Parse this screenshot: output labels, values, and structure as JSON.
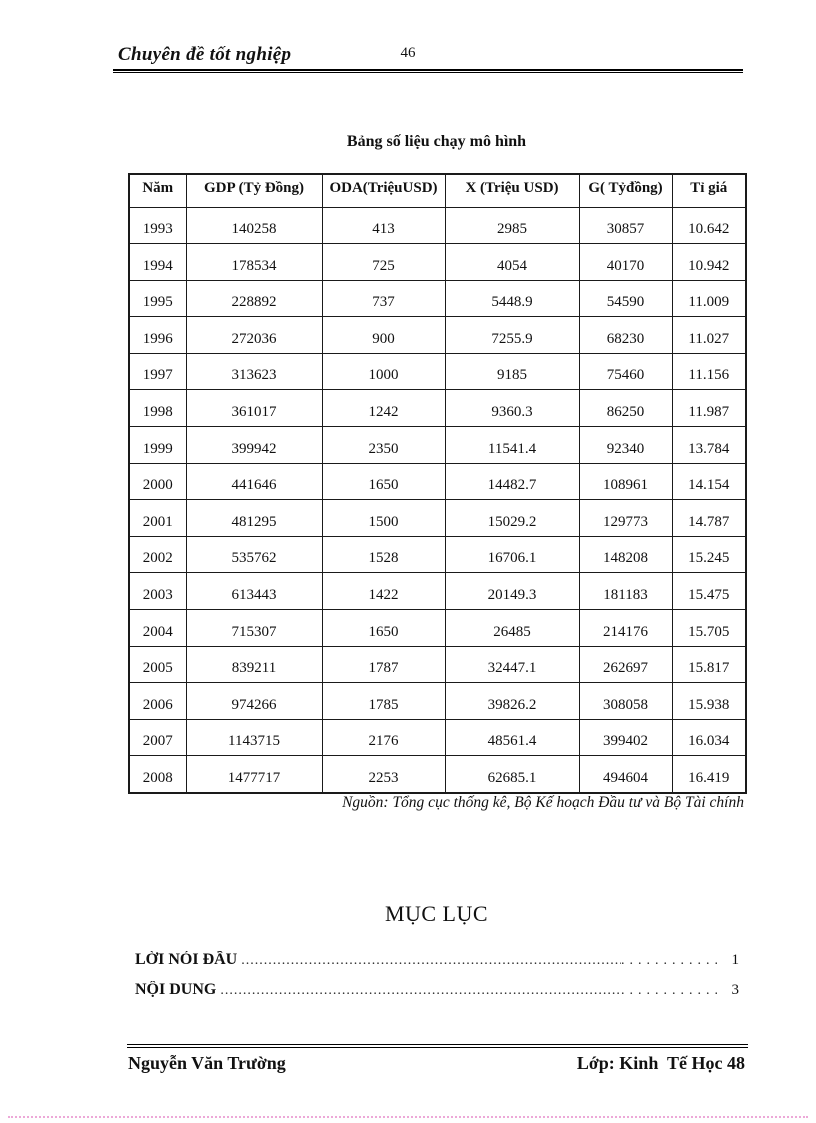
{
  "header": {
    "title": "Chuyên đề tốt nghiệp",
    "page_number": "46"
  },
  "table_title": "Bảng số liệu chạy mô hình",
  "table": {
    "columns": [
      "Năm",
      "GDP (Tỷ Đồng)",
      "ODA(TriệuUSD)",
      "X (Triệu USD)",
      "G( Tỷđồng)",
      "Tỉ giá"
    ],
    "rows": [
      [
        "1993",
        "140258",
        "413",
        "2985",
        "30857",
        "10.642"
      ],
      [
        "1994",
        "178534",
        "725",
        "4054",
        "40170",
        "10.942"
      ],
      [
        "1995",
        "228892",
        "737",
        "5448.9",
        "54590",
        "11.009"
      ],
      [
        "1996",
        "272036",
        "900",
        "7255.9",
        "68230",
        "11.027"
      ],
      [
        "1997",
        "313623",
        "1000",
        "9185",
        "75460",
        "11.156"
      ],
      [
        "1998",
        "361017",
        "1242",
        "9360.3",
        "86250",
        "11.987"
      ],
      [
        "1999",
        "399942",
        "2350",
        "11541.4",
        "92340",
        "13.784"
      ],
      [
        "2000",
        "441646",
        "1650",
        "14482.7",
        "108961",
        "14.154"
      ],
      [
        "2001",
        "481295",
        "1500",
        "15029.2",
        "129773",
        "14.787"
      ],
      [
        "2002",
        "535762",
        "1528",
        "16706.1",
        "148208",
        "15.245"
      ],
      [
        "2003",
        "613443",
        "1422",
        "20149.3",
        "181183",
        "15.475"
      ],
      [
        "2004",
        "715307",
        "1650",
        "26485",
        "214176",
        "15.705"
      ],
      [
        "2005",
        "839211",
        "1787",
        "32447.1",
        "262697",
        "15.817"
      ],
      [
        "2006",
        "974266",
        "1785",
        "39826.2",
        "308058",
        "15.938"
      ],
      [
        "2007",
        "1143715",
        "2176",
        "48561.4",
        "399402",
        "16.034"
      ],
      [
        "2008",
        "1477717",
        "2253",
        "62685.1",
        "494604",
        "16.419"
      ]
    ]
  },
  "source": "Nguồn: Tổng cục thống kê, Bộ Kế hoạch Đầu tư và Bộ Tài chính",
  "toc": {
    "heading": "MỤC LỤC",
    "entries": [
      {
        "label": "LỜI NÓI ĐẦU",
        "page": "1"
      },
      {
        "label": "NỘI DUNG",
        "page": "3"
      }
    ]
  },
  "footer": {
    "left": "Nguyễn Văn Trường",
    "right": "Lớp: Kinh  Tế Học 48"
  },
  "colors": {
    "ink": "#111111",
    "page_boundary_dots": "#eda8d8"
  }
}
